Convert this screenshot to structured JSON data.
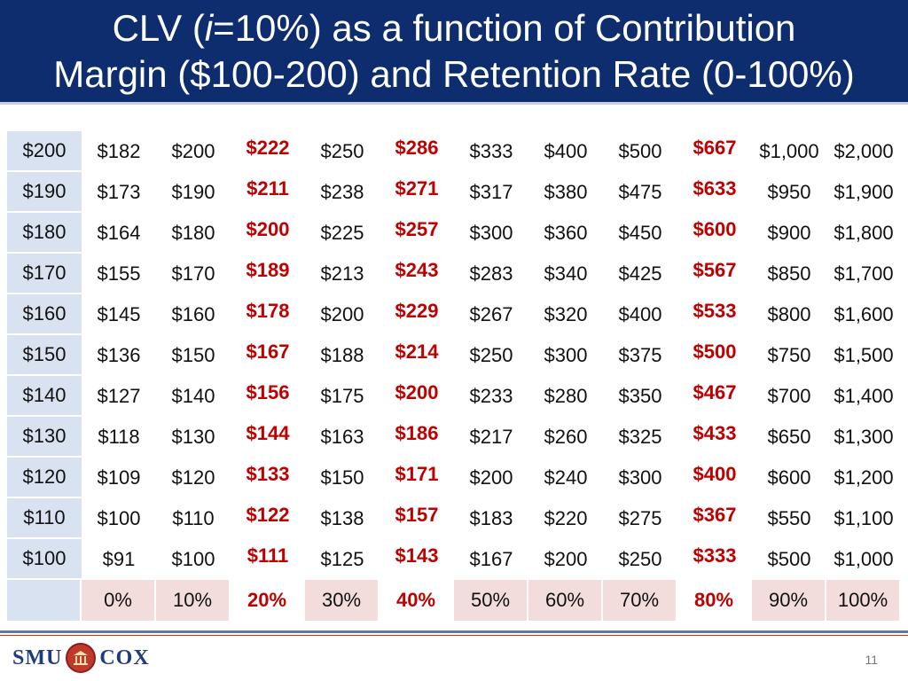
{
  "title": {
    "line1_pre": "CLV (",
    "line1_italic": "i",
    "line1_post": "=10%) as a function of Contribution",
    "line2": "Margin ($100-200) and Retention Rate (0-100%)"
  },
  "table": {
    "rows": [
      {
        "margin": "$200",
        "values": [
          "$182",
          "$200",
          "$222",
          "$250",
          "$286",
          "$333",
          "$400",
          "$500",
          "$667",
          "$1,000",
          "$2,000"
        ]
      },
      {
        "margin": "$190",
        "values": [
          "$173",
          "$190",
          "$211",
          "$238",
          "$271",
          "$317",
          "$380",
          "$475",
          "$633",
          "$950",
          "$1,900"
        ]
      },
      {
        "margin": "$180",
        "values": [
          "$164",
          "$180",
          "$200",
          "$225",
          "$257",
          "$300",
          "$360",
          "$450",
          "$600",
          "$900",
          "$1,800"
        ]
      },
      {
        "margin": "$170",
        "values": [
          "$155",
          "$170",
          "$189",
          "$213",
          "$243",
          "$283",
          "$340",
          "$425",
          "$567",
          "$850",
          "$1,700"
        ]
      },
      {
        "margin": "$160",
        "values": [
          "$145",
          "$160",
          "$178",
          "$200",
          "$229",
          "$267",
          "$320",
          "$400",
          "$533",
          "$800",
          "$1,600"
        ]
      },
      {
        "margin": "$150",
        "values": [
          "$136",
          "$150",
          "$167",
          "$188",
          "$214",
          "$250",
          "$300",
          "$375",
          "$500",
          "$750",
          "$1,500"
        ]
      },
      {
        "margin": "$140",
        "values": [
          "$127",
          "$140",
          "$156",
          "$175",
          "$200",
          "$233",
          "$280",
          "$350",
          "$467",
          "$700",
          "$1,400"
        ]
      },
      {
        "margin": "$130",
        "values": [
          "$118",
          "$130",
          "$144",
          "$163",
          "$186",
          "$217",
          "$260",
          "$325",
          "$433",
          "$650",
          "$1,300"
        ]
      },
      {
        "margin": "$120",
        "values": [
          "$109",
          "$120",
          "$133",
          "$150",
          "$171",
          "$200",
          "$240",
          "$300",
          "$400",
          "$600",
          "$1,200"
        ]
      },
      {
        "margin": "$110",
        "values": [
          "$100",
          "$110",
          "$122",
          "$138",
          "$157",
          "$183",
          "$220",
          "$275",
          "$367",
          "$550",
          "$1,100"
        ]
      },
      {
        "margin": "$100",
        "values": [
          "$91",
          "$100",
          "$111",
          "$125",
          "$143",
          "$167",
          "$200",
          "$250",
          "$333",
          "$500",
          "$1,000"
        ]
      }
    ],
    "retention_rates": [
      "0%",
      "10%",
      "20%",
      "30%",
      "40%",
      "50%",
      "60%",
      "70%",
      "80%",
      "90%",
      "100%"
    ],
    "highlight_columns": [
      2,
      4,
      8
    ],
    "highlight_color": "#c00000"
  },
  "footer": {
    "logo_left": "SMU",
    "logo_right": "COX",
    "page_number": "11"
  },
  "colors": {
    "title_bg": "#0d2d6e",
    "row_header_bg": "#d9e2f0",
    "axis_bg": "#f3dcdc"
  }
}
